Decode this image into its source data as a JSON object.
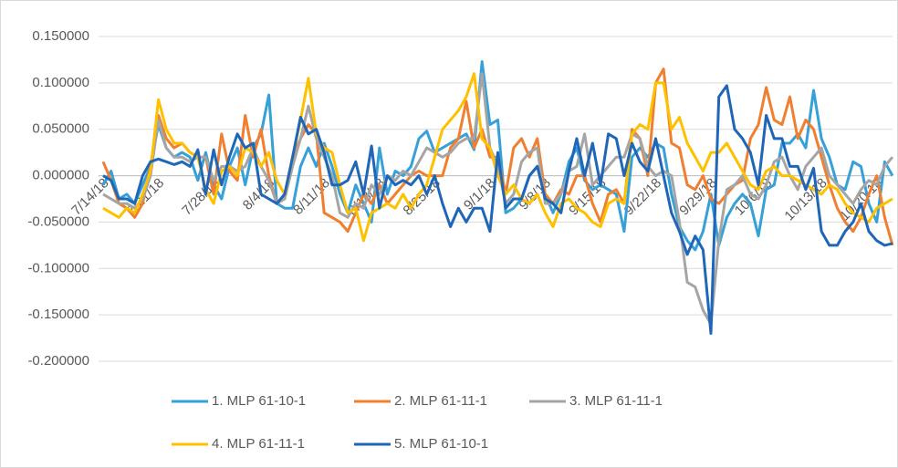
{
  "chart_data": {
    "type": "line",
    "categories": [
      "7/14/18",
      null,
      null,
      null,
      null,
      null,
      null,
      "7/21/18",
      null,
      null,
      null,
      null,
      null,
      null,
      "7/28/18",
      null,
      null,
      null,
      null,
      null,
      null,
      "8/4/18",
      null,
      null,
      null,
      null,
      null,
      null,
      "8/11/18",
      null,
      null,
      null,
      null,
      null,
      null,
      "8/18/18",
      null,
      null,
      null,
      null,
      null,
      null,
      "8/25/18",
      null,
      null,
      null,
      null,
      null,
      null,
      "9/1/18",
      null,
      null,
      null,
      null,
      null,
      null,
      "9/8/18",
      null,
      null,
      null,
      null,
      null,
      null,
      "9/15/18",
      null,
      null,
      null,
      null,
      null,
      null,
      "9/22/18",
      null,
      null,
      null,
      null,
      null,
      null,
      "9/29/18",
      null,
      null,
      null,
      null,
      null,
      null,
      "10/6/18",
      null,
      null,
      null,
      null,
      null,
      null,
      "10/13/18",
      null,
      null,
      null,
      null,
      null,
      null,
      "10/20/18",
      null,
      null
    ],
    "series": [
      {
        "name": "1. MLP 61-10-1",
        "color": "#36a0d9",
        "values": [
          -0.01,
          0.005,
          -0.025,
          -0.02,
          -0.03,
          -0.01,
          0.01,
          0.055,
          0.03,
          0.02,
          0.025,
          0.02,
          -0.005,
          0.025,
          -0.01,
          -0.025,
          0.01,
          0.03,
          -0.01,
          0.03,
          0.045,
          0.087,
          -0.03,
          -0.035,
          -0.035,
          0.01,
          0.03,
          0.01,
          0.035,
          0.01,
          -0.02,
          -0.04,
          -0.01,
          -0.03,
          -0.05,
          0.03,
          -0.02,
          0.005,
          0.0,
          0.01,
          0.04,
          0.048,
          0.025,
          0.03,
          0.035,
          0.04,
          0.045,
          0.028,
          0.123,
          0.055,
          0.06,
          -0.04,
          -0.035,
          -0.025,
          0.0,
          0.01,
          -0.02,
          -0.04,
          -0.02,
          0.015,
          0.03,
          -0.005,
          -0.015,
          -0.01,
          -0.015,
          -0.02,
          -0.06,
          0.02,
          0.03,
          0.02,
          0.035,
          0.03,
          -0.02,
          -0.055,
          -0.07,
          -0.08,
          -0.06,
          -0.02,
          -0.075,
          -0.045,
          -0.03,
          -0.02,
          -0.03,
          -0.065,
          -0.015,
          -0.01,
          0.035,
          0.035,
          0.045,
          0.03,
          0.092,
          0.04,
          0.02,
          -0.01,
          -0.015,
          0.015,
          0.01,
          -0.03,
          -0.05,
          0.015,
          0.0
        ]
      },
      {
        "name": "2. MLP 61-11-1",
        "color": "#f07f30",
        "values": [
          0.015,
          -0.005,
          -0.03,
          -0.035,
          -0.045,
          -0.03,
          0.01,
          0.065,
          0.04,
          0.03,
          0.035,
          0.025,
          0.02,
          0.02,
          -0.02,
          0.045,
          0.005,
          -0.005,
          0.065,
          0.02,
          0.05,
          0.0,
          -0.03,
          -0.025,
          0.02,
          0.04,
          0.055,
          0.045,
          -0.04,
          -0.045,
          -0.05,
          -0.06,
          -0.04,
          -0.02,
          -0.03,
          -0.01,
          -0.03,
          -0.02,
          -0.01,
          0.0,
          0.005,
          0.0,
          0.0,
          0.0,
          0.03,
          0.04,
          0.08,
          0.03,
          0.05,
          0.02,
          0.02,
          -0.02,
          0.03,
          0.04,
          0.02,
          0.04,
          -0.02,
          -0.03,
          -0.015,
          -0.02,
          0.0,
          0.0,
          -0.03,
          -0.05,
          -0.02,
          -0.015,
          -0.03,
          0.05,
          0.04,
          0.0,
          0.1,
          0.115,
          0.035,
          0.03,
          -0.01,
          -0.015,
          0.0,
          -0.025,
          -0.03,
          -0.02,
          -0.01,
          -0.005,
          0.04,
          0.055,
          0.095,
          0.06,
          0.055,
          0.085,
          0.04,
          0.06,
          0.05,
          0.02,
          -0.01,
          -0.035,
          -0.05,
          -0.06,
          -0.045,
          -0.02,
          0.0,
          -0.045,
          -0.075
        ]
      },
      {
        "name": "3. MLP 61-11-1",
        "color": "#a5a5a5",
        "values": [
          -0.02,
          -0.025,
          -0.03,
          -0.03,
          -0.035,
          -0.025,
          0.0,
          0.06,
          0.03,
          0.02,
          0.02,
          0.015,
          0.02,
          0.02,
          -0.005,
          0.01,
          0.01,
          0.005,
          0.01,
          0.03,
          0.01,
          -0.005,
          -0.03,
          -0.025,
          0.01,
          0.04,
          0.075,
          0.04,
          0.02,
          0.0,
          -0.04,
          -0.045,
          -0.03,
          -0.035,
          -0.01,
          -0.02,
          0.0,
          -0.005,
          0.005,
          0.0,
          0.015,
          0.03,
          0.025,
          0.02,
          0.025,
          0.035,
          0.04,
          0.04,
          0.11,
          0.03,
          0.01,
          -0.03,
          -0.02,
          0.015,
          0.025,
          0.03,
          -0.03,
          -0.03,
          -0.02,
          0.005,
          0.01,
          0.045,
          -0.01,
          0.0,
          0.01,
          0.02,
          0.02,
          0.045,
          0.04,
          0.01,
          0.0,
          0.005,
          0.0,
          -0.05,
          -0.115,
          -0.12,
          -0.145,
          -0.16,
          -0.07,
          -0.015,
          -0.01,
          0.0,
          -0.02,
          -0.025,
          -0.01,
          0.015,
          0.02,
          0.0,
          -0.015,
          0.01,
          0.02,
          0.03,
          0.0,
          -0.01,
          -0.02,
          -0.03,
          -0.015,
          -0.005,
          -0.01,
          0.01,
          0.02
        ]
      },
      {
        "name": "4. MLP 61-11-1",
        "color": "#ffc000",
        "values": [
          -0.035,
          -0.04,
          -0.045,
          -0.035,
          -0.04,
          -0.02,
          0.005,
          0.082,
          0.05,
          0.035,
          0.035,
          0.025,
          0.02,
          -0.015,
          -0.03,
          0.005,
          0.01,
          0.0,
          0.03,
          0.025,
          0.01,
          0.025,
          -0.005,
          -0.02,
          0.02,
          0.06,
          0.105,
          0.045,
          0.03,
          0.025,
          -0.01,
          -0.04,
          -0.035,
          -0.07,
          -0.04,
          -0.035,
          -0.03,
          -0.035,
          -0.02,
          -0.035,
          -0.02,
          -0.01,
          0.02,
          0.05,
          0.06,
          0.07,
          0.085,
          0.11,
          0.04,
          0.03,
          0.0,
          -0.02,
          -0.01,
          -0.025,
          -0.03,
          -0.02,
          -0.04,
          -0.055,
          -0.03,
          -0.025,
          -0.035,
          -0.04,
          -0.05,
          -0.055,
          -0.03,
          -0.025,
          -0.03,
          0.045,
          0.055,
          0.05,
          0.1,
          0.1,
          0.05,
          0.063,
          0.035,
          0.02,
          0.005,
          0.025,
          0.025,
          0.035,
          0.02,
          0.005,
          -0.01,
          -0.015,
          0.005,
          0.01,
          0.0,
          0.0,
          -0.005,
          -0.01,
          -0.015,
          -0.02,
          -0.01,
          -0.015,
          -0.03,
          -0.04,
          -0.045,
          -0.05,
          -0.035,
          -0.03,
          -0.025
        ]
      },
      {
        "name": "5. MLP 61-10-1",
        "color": "#1f66b8",
        "values": [
          0.0,
          -0.005,
          -0.025,
          -0.025,
          -0.03,
          0.0,
          0.015,
          0.018,
          0.015,
          0.012,
          0.015,
          0.01,
          0.028,
          -0.02,
          0.028,
          -0.01,
          0.02,
          0.045,
          0.03,
          0.035,
          -0.02,
          -0.025,
          -0.03,
          -0.02,
          0.02,
          0.063,
          0.045,
          0.05,
          0.025,
          -0.01,
          -0.01,
          -0.005,
          0.015,
          -0.02,
          0.032,
          -0.035,
          0.0,
          -0.01,
          -0.005,
          -0.01,
          0.0,
          -0.02,
          0.0,
          -0.03,
          -0.055,
          -0.035,
          -0.05,
          -0.035,
          -0.035,
          -0.06,
          0.025,
          -0.035,
          -0.025,
          -0.025,
          0.0,
          0.01,
          -0.025,
          -0.03,
          -0.04,
          0.005,
          0.04,
          0.0,
          0.035,
          -0.01,
          0.045,
          0.04,
          0.0,
          0.035,
          0.015,
          0.005,
          0.04,
          0.0,
          -0.04,
          -0.06,
          -0.085,
          -0.065,
          -0.08,
          -0.17,
          0.085,
          0.097,
          0.05,
          0.04,
          0.025,
          -0.01,
          0.065,
          0.04,
          0.04,
          0.01,
          0.01,
          -0.015,
          0.008,
          -0.06,
          -0.075,
          -0.075,
          -0.06,
          -0.05,
          -0.03,
          -0.06,
          -0.07,
          -0.075,
          -0.073
        ]
      }
    ],
    "ylim": [
      -0.2,
      0.15
    ],
    "yticks": [
      {
        "value": -0.2,
        "label": "-0.200000"
      },
      {
        "value": -0.15,
        "label": "-0.150000"
      },
      {
        "value": -0.1,
        "label": "-0.100000"
      },
      {
        "value": -0.05,
        "label": "-0.050000"
      },
      {
        "value": 0,
        "label": "0.000000"
      },
      {
        "value": 0.05,
        "label": "0.050000"
      },
      {
        "value": 0.1,
        "label": "0.100000"
      },
      {
        "value": 0.15,
        "label": "0.150000"
      }
    ],
    "grid": true,
    "legend": "bottom"
  }
}
